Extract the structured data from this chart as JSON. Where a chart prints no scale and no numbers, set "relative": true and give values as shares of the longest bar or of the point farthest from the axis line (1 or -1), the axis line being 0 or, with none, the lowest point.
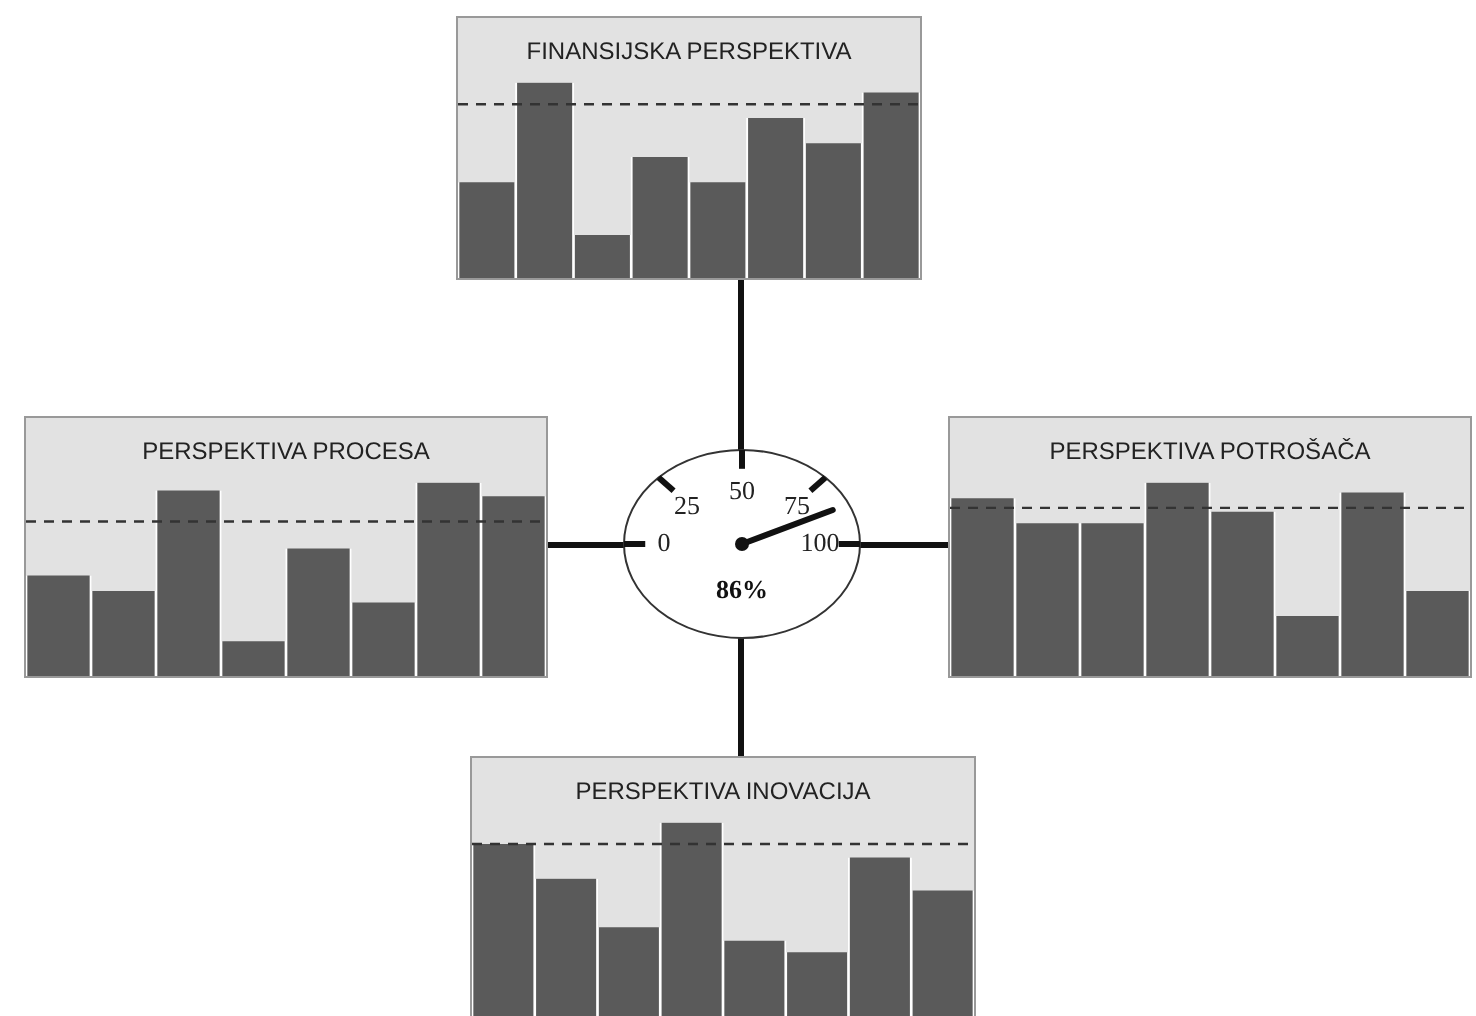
{
  "chart_data": [
    {
      "type": "bar",
      "title": "FINANSIJSKA PERSPEKTIVA",
      "relative": true,
      "categories": [
        null,
        null,
        null,
        null,
        null,
        null,
        null,
        null
      ],
      "values": [
        0.49,
        1,
        0.22,
        0.62,
        0.49,
        0.82,
        0.69,
        0.95
      ],
      "color": "#5a5a5a",
      "ref_lines": [
        {
          "axis": "y",
          "value": 0.89,
          "color": "#333333",
          "line_style": "dashed"
        }
      ]
    },
    {
      "type": "bar",
      "title": "PERSPEKTIVA PROCESA",
      "relative": true,
      "categories": [
        null,
        null,
        null,
        null,
        null,
        null,
        null,
        null
      ],
      "values": [
        0.52,
        0.44,
        0.96,
        0.18,
        0.66,
        0.38,
        1,
        0.93
      ],
      "color": "#5a5a5a",
      "ref_lines": [
        {
          "axis": "y",
          "value": 0.8,
          "color": "#333333",
          "line_style": "dashed"
        }
      ]
    },
    {
      "type": "other",
      "values": [
        86
      ],
      "value_labels": [
        "86%"
      ],
      "annotations": [
        "0",
        "25",
        "50",
        "75",
        "100"
      ]
    },
    {
      "type": "bar",
      "title": "PERSPEKTIVA POTROŠAČA",
      "relative": true,
      "categories": [
        null,
        null,
        null,
        null,
        null,
        null,
        null,
        null
      ],
      "values": [
        0.92,
        0.79,
        0.79,
        1,
        0.85,
        0.31,
        0.95,
        0.44
      ],
      "color": "#5a5a5a",
      "ref_lines": [
        {
          "axis": "y",
          "value": 0.87,
          "color": "#333333",
          "line_style": "dashed"
        }
      ]
    },
    {
      "type": "bar",
      "title": "PERSPEKTIVA INOVACIJA",
      "relative": true,
      "categories": [
        null,
        null,
        null,
        null,
        null,
        null,
        null,
        null
      ],
      "values": [
        0.89,
        0.71,
        0.46,
        1,
        0.39,
        0.33,
        0.82,
        0.65
      ],
      "color": "#5a5a5a",
      "ref_lines": [
        {
          "axis": "y",
          "value": 0.89,
          "color": "#333333",
          "line_style": "dashed"
        }
      ]
    }
  ]
}
